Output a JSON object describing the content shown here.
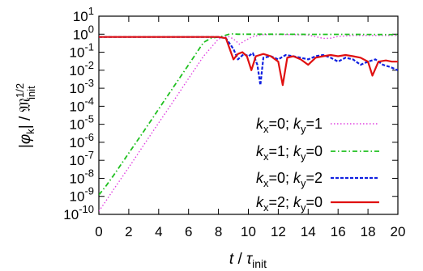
{
  "chart_data": {
    "type": "line",
    "xlabel": "t / τinit",
    "ylabel": "|φk| / 𝔐init^1/2",
    "xlim": [
      0,
      20
    ],
    "ylim": [
      1e-10,
      10
    ],
    "yscale": "log",
    "xticks": [
      "0",
      "2",
      "4",
      "6",
      "8",
      "10",
      "12",
      "14",
      "16",
      "18",
      "20"
    ],
    "yticks": [
      {
        "base": "10",
        "exp": "1"
      },
      {
        "base": "10",
        "exp": "0"
      },
      {
        "base": "10",
        "exp": "-1"
      },
      {
        "base": "10",
        "exp": "-2"
      },
      {
        "base": "10",
        "exp": "-3"
      },
      {
        "base": "10",
        "exp": "-4"
      },
      {
        "base": "10",
        "exp": "-5"
      },
      {
        "base": "10",
        "exp": "-6"
      },
      {
        "base": "10",
        "exp": "-7"
      },
      {
        "base": "10",
        "exp": "-8"
      },
      {
        "base": "10",
        "exp": "-9"
      },
      {
        "base": "10",
        "exp": "-10"
      }
    ],
    "grid": false,
    "legend": "bottom-right",
    "series": [
      {
        "name": "kx=0; ky=1",
        "color": "#e040e0",
        "dash": "dotted",
        "points": [
          [
            0,
            1.5e-10
          ],
          [
            0.5,
            6e-10
          ],
          [
            1,
            2.5e-09
          ],
          [
            2,
            4e-08
          ],
          [
            3,
            7e-07
          ],
          [
            4,
            1.2e-05
          ],
          [
            5,
            0.0002
          ],
          [
            6,
            0.0035
          ],
          [
            7,
            0.06
          ],
          [
            8,
            0.55
          ],
          [
            8.6,
            0.78
          ],
          [
            9,
            0.55
          ],
          [
            9.4,
            0.28
          ],
          [
            9.8,
            0.45
          ],
          [
            10.3,
            0.75
          ],
          [
            11,
            0.95
          ],
          [
            12,
            0.97
          ],
          [
            13,
            0.95
          ],
          [
            14,
            0.9
          ],
          [
            15,
            0.58
          ],
          [
            15.5,
            0.6
          ],
          [
            16,
            0.75
          ],
          [
            17,
            0.85
          ],
          [
            18,
            0.85
          ],
          [
            19,
            0.85
          ],
          [
            20,
            0.85
          ]
        ]
      },
      {
        "name": "kx=1; ky=0",
        "color": "#20c020",
        "dash": "dash-dot",
        "points": [
          [
            0,
            1.2e-09
          ],
          [
            0.5,
            4e-09
          ],
          [
            1,
            1.5e-08
          ],
          [
            2,
            2.5e-07
          ],
          [
            3,
            4e-06
          ],
          [
            4,
            7e-05
          ],
          [
            5,
            0.0012
          ],
          [
            6,
            0.02
          ],
          [
            7,
            0.35
          ],
          [
            7.5,
            0.6
          ],
          [
            8.2,
            0.75
          ],
          [
            8.8,
            1.05
          ],
          [
            9.3,
            1.0
          ],
          [
            10,
            1.0
          ],
          [
            12,
            1.0
          ],
          [
            14,
            0.98
          ],
          [
            16,
            0.98
          ],
          [
            18,
            0.97
          ],
          [
            20,
            0.95
          ]
        ]
      },
      {
        "name": "kx=0; ky=2",
        "color": "#1020e0",
        "dash": "dashed",
        "points": [
          [
            0,
            0.7
          ],
          [
            8,
            0.7
          ],
          [
            8.5,
            0.6
          ],
          [
            9,
            0.15
          ],
          [
            9.3,
            0.04
          ],
          [
            9.7,
            0.08
          ],
          [
            10,
            0.06
          ],
          [
            10.3,
            0.09
          ],
          [
            10.6,
            0.02
          ],
          [
            10.8,
            0.0015
          ],
          [
            11,
            0.05
          ],
          [
            11.5,
            0.06
          ],
          [
            12,
            0.04
          ],
          [
            12.5,
            0.07
          ],
          [
            13,
            0.06
          ],
          [
            13.5,
            0.05
          ],
          [
            14,
            0.04
          ],
          [
            14.5,
            0.06
          ],
          [
            15,
            0.07
          ],
          [
            15.5,
            0.05
          ],
          [
            16,
            0.03
          ],
          [
            16.5,
            0.05
          ],
          [
            17,
            0.04
          ],
          [
            17.5,
            0.02
          ],
          [
            18,
            0.03
          ],
          [
            18.5,
            0.04
          ],
          [
            19,
            0.02
          ],
          [
            19.5,
            0.015
          ],
          [
            20,
            0.01
          ]
        ]
      },
      {
        "name": "kx=2; ky=0",
        "color": "#e01010",
        "dash": "solid",
        "points": [
          [
            0,
            0.7
          ],
          [
            8,
            0.7
          ],
          [
            8.5,
            0.6
          ],
          [
            9,
            0.04
          ],
          [
            9.3,
            0.08
          ],
          [
            9.6,
            0.1
          ],
          [
            9.9,
            0.06
          ],
          [
            10.2,
            0.01
          ],
          [
            10.5,
            0.06
          ],
          [
            11,
            0.08
          ],
          [
            11.5,
            0.06
          ],
          [
            12,
            0.03
          ],
          [
            12.3,
            0.0015
          ],
          [
            12.6,
            0.05
          ],
          [
            13,
            0.06
          ],
          [
            13.5,
            0.04
          ],
          [
            14,
            0.02
          ],
          [
            14.5,
            0.05
          ],
          [
            15,
            0.06
          ],
          [
            15.5,
            0.07
          ],
          [
            16,
            0.06
          ],
          [
            16.5,
            0.07
          ],
          [
            17,
            0.06
          ],
          [
            17.5,
            0.05
          ],
          [
            18,
            0.03
          ],
          [
            18.3,
            0.005
          ],
          [
            18.7,
            0.03
          ],
          [
            19.2,
            0.035
          ],
          [
            19.6,
            0.03
          ],
          [
            20,
            0.03
          ]
        ]
      }
    ],
    "legend_entries": [
      {
        "a": "k",
        "as": "x",
        "av": "=0; ",
        "b": "k",
        "bs": "y",
        "bv": "=1"
      },
      {
        "a": "k",
        "as": "x",
        "av": "=1; ",
        "b": "k",
        "bs": "y",
        "bv": "=0"
      },
      {
        "a": "k",
        "as": "x",
        "av": "=0; ",
        "b": "k",
        "bs": "y",
        "bv": "=2"
      },
      {
        "a": "k",
        "as": "x",
        "av": "=2; ",
        "b": "k",
        "bs": "y",
        "bv": "=0"
      }
    ],
    "axis_text": {
      "x_t": "t",
      "x_slash": " / ",
      "x_tau": "τ",
      "x_tau_sub": "init",
      "y_bar1": "|",
      "y_phi": "φ",
      "y_phi_sub": "k",
      "y_bar2": "|",
      "y_slash": " / ",
      "y_m": "𝔐",
      "y_m_sup": "1/2",
      "y_m_sub": "init"
    }
  }
}
